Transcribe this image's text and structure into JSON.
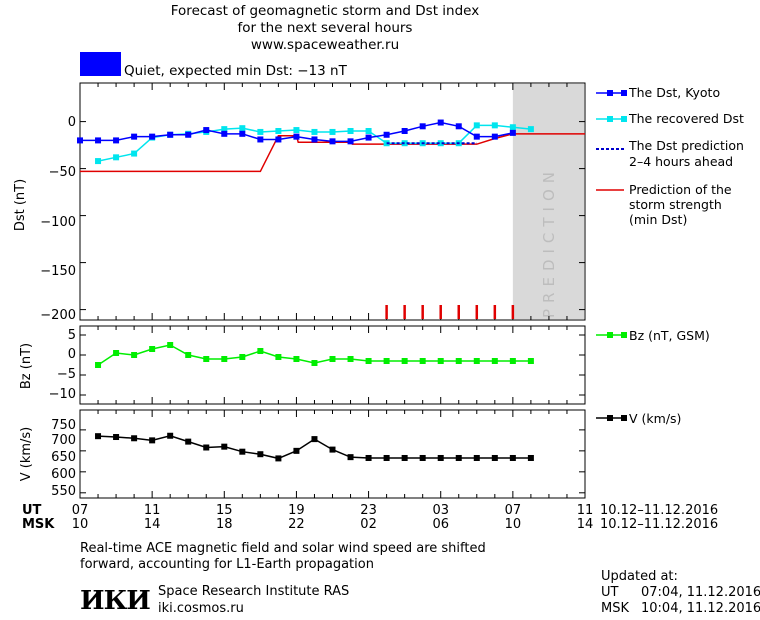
{
  "title_lines": [
    "Forecast of geomagnetic storm and Dst index",
    "for the next several hours",
    "www.spaceweather.ru"
  ],
  "status": {
    "label": "Quiet, expected min Dst: −13 nT",
    "color": "#0000ff"
  },
  "prediction_label": "PREDICTION",
  "axes": {
    "x_ut": {
      "label": "UT",
      "ticks": [
        "07",
        "11",
        "15",
        "19",
        "23",
        "03",
        "07",
        "11"
      ],
      "date_range": "10.12–11.12.2016"
    },
    "x_msk": {
      "label": "MSK",
      "ticks": [
        "10",
        "14",
        "18",
        "22",
        "02",
        "06",
        "10",
        "14"
      ],
      "date_range": "10.12–11.12.2016"
    },
    "dst": {
      "label": "Dst (nT)",
      "ticks": [
        "0",
        "−50",
        "−100",
        "−150",
        "−200"
      ]
    },
    "bz": {
      "label": "Bz (nT)",
      "ticks": [
        "5",
        "0",
        "−5",
        "−10"
      ]
    },
    "v": {
      "label": "V (km/s)",
      "ticks": [
        "700",
        "650",
        "600",
        "550",
        "750"
      ]
    }
  },
  "legend": {
    "dst_kyoto": "The Dst, Kyoto",
    "dst_recovered": "The recovered Dst",
    "dst_prediction_1": "The Dst prediction",
    "dst_prediction_2": "2–4 hours ahead",
    "storm_1": "Prediction of the",
    "storm_2": "storm strength",
    "storm_3": "(min Dst)",
    "bz": "Bz (nT, GSM)",
    "v": "V (km/s)"
  },
  "footer": {
    "line1": "Real-time ACE magnetic field and solar wind speed are shifted",
    "line2": "forward, accounting for L1-Earth propagation",
    "logo": "ИКИ",
    "institute": "Space Research Institute RAS",
    "site": "iki.cosmos.ru",
    "updated_label": "Updated at:",
    "updated_ut_label": "UT",
    "updated_ut": "07:04, 11.12.2016",
    "updated_msk_label": "MSK",
    "updated_msk": "10:04, 11.12.2016"
  },
  "colors": {
    "kyoto": "#0000ff",
    "recovered": "#00e5ee",
    "prediction": "#0000cc",
    "storm": "#e00000",
    "bz": "#00ee00",
    "v": "#000000",
    "shade": "#d9d9d9"
  },
  "chart_data": [
    {
      "type": "line",
      "ylabel": "Dst (nT)",
      "ylim": [
        -210,
        40
      ],
      "x_units": "UT hours from 10.12.2016 00:00",
      "xlim": [
        7,
        35
      ],
      "prediction_window": [
        31,
        35
      ],
      "series": [
        {
          "name": "The Dst, Kyoto",
          "x": [
            7,
            8,
            9,
            10,
            11,
            12,
            13,
            14,
            15,
            16,
            17,
            18,
            19,
            20,
            21,
            22,
            23,
            24,
            25,
            26,
            27,
            28,
            29,
            30,
            31
          ],
          "y": [
            -20,
            -20,
            -20,
            -16,
            -16,
            -14,
            -14,
            -9,
            -13,
            -13,
            -19,
            -19,
            -16,
            -19,
            -21,
            -21,
            -17,
            -14,
            -10,
            -5,
            -1,
            -5,
            -16,
            -16,
            -12
          ]
        },
        {
          "name": "The recovered Dst",
          "x": [
            8,
            9,
            10,
            11,
            12,
            13,
            14,
            15,
            16,
            17,
            18,
            19,
            20,
            21,
            22,
            23,
            24,
            25,
            26,
            27,
            28,
            29,
            30,
            31,
            32
          ],
          "y": [
            -42,
            -38,
            -34,
            -17,
            -14,
            -13,
            -11,
            -8,
            -7,
            -11,
            -10,
            -9,
            -11,
            -11,
            -10,
            -10,
            -23,
            -23,
            -23,
            -23,
            -23,
            -4,
            -4,
            -6,
            -8
          ]
        },
        {
          "name": "The Dst prediction 2–4 hours ahead",
          "x": [
            24,
            29
          ],
          "y": [
            -23,
            -23
          ]
        },
        {
          "name": "Prediction of the storm strength (min Dst)",
          "x": [
            7,
            17,
            18,
            19,
            19.1,
            22,
            22.1,
            28,
            29,
            30,
            31,
            35
          ],
          "y": [
            -53,
            -53,
            -15,
            -15,
            -22,
            -22,
            -24,
            -24,
            -24,
            -18,
            -13,
            -13
          ]
        }
      ],
      "ticks_red": [
        24,
        25,
        26,
        27,
        28,
        29,
        30,
        31
      ]
    },
    {
      "type": "line",
      "ylabel": "Bz (nT)",
      "ylim": [
        -12,
        7
      ],
      "x_units": "UT hours from 10.12.2016 00:00",
      "xlim": [
        7,
        35
      ],
      "series": [
        {
          "name": "Bz (nT, GSM)",
          "x": [
            8,
            9,
            10,
            11,
            12,
            13,
            14,
            15,
            16,
            17,
            18,
            19,
            20,
            21,
            22,
            23,
            24,
            25,
            26,
            27,
            28,
            29,
            30,
            31,
            32
          ],
          "y": [
            -2.5,
            0.5,
            0,
            1.5,
            2.5,
            0,
            -1,
            -1,
            -0.5,
            1,
            -0.5,
            -1,
            -2,
            -1,
            -1,
            -1.5,
            -1.5,
            -1.5,
            -1.5,
            -1.5,
            -1.5,
            -1.5,
            -1.5,
            -1.5,
            -1.5
          ]
        }
      ]
    },
    {
      "type": "line",
      "ylabel": "V (km/s)",
      "ylim": [
        540,
        745
      ],
      "x_units": "UT hours from 10.12.2016 00:00",
      "xlim": [
        7,
        35
      ],
      "series": [
        {
          "name": "V (km/s)",
          "x": [
            8,
            9,
            10,
            11,
            12,
            13,
            14,
            15,
            16,
            17,
            18,
            19,
            20,
            21,
            22,
            23,
            24,
            25,
            26,
            27,
            28,
            29,
            30,
            31,
            32
          ],
          "y": [
            685,
            683,
            680,
            675,
            686,
            672,
            658,
            660,
            648,
            642,
            632,
            650,
            678,
            653,
            635,
            633,
            633,
            633,
            633,
            633,
            633,
            633,
            633,
            633,
            633
          ]
        }
      ]
    }
  ]
}
